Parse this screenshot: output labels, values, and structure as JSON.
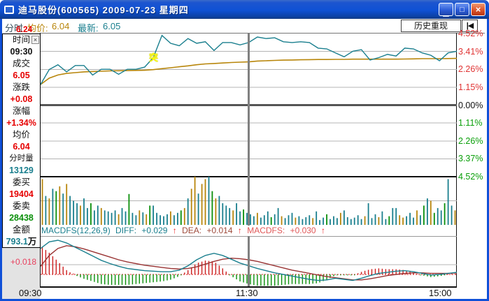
{
  "window": {
    "title": "迪马股份(600565) 2009-07-23 星期四",
    "minimize_label": "▁",
    "maximize_label": "□",
    "close_label": "×"
  },
  "header": {
    "mode": "分时",
    "avg_label": "均价:",
    "avg_value": "6.04",
    "last_label": "最新:",
    "last_value": "6.05",
    "replay_button": "历史重现",
    "jump_start_icon": "|◀"
  },
  "info_panel": {
    "close_icon": "×",
    "rows": [
      {
        "label": "时间",
        "value": "09:30",
        "color": "#111111"
      },
      {
        "label": "成交",
        "value": "6.05",
        "color": "#e60000"
      },
      {
        "label": "涨跌",
        "value": "+0.08",
        "color": "#e60000"
      },
      {
        "label": "涨幅",
        "value": "+1.34%",
        "color": "#e60000"
      },
      {
        "label": "均价",
        "value": "6.04",
        "color": "#e60000"
      },
      {
        "label": "分时量",
        "value": "13129",
        "color": "#1a7f8e"
      },
      {
        "label": "委买",
        "value": "19404",
        "color": "#e60000"
      },
      {
        "label": "委卖",
        "value": "28438",
        "color": "#0a8f0a"
      },
      {
        "label": "金额",
        "value": "793.1",
        "suffix": "万",
        "color": "#1a7f8e"
      }
    ]
  },
  "price_axis": {
    "top_price_label": "6.24",
    "macd_grid_label": "+0.018"
  },
  "right_axis": [
    {
      "text": "4.52%",
      "color": "#e03434"
    },
    {
      "text": "3.41%",
      "color": "#e03434"
    },
    {
      "text": "2.26%",
      "color": "#e03434"
    },
    {
      "text": "1.15%",
      "color": "#e03434"
    },
    {
      "text": "0.00%",
      "color": "#111111"
    },
    {
      "text": "1.11%",
      "color": "#0a9f0a"
    },
    {
      "text": "2.26%",
      "color": "#0a9f0a"
    },
    {
      "text": "3.37%",
      "color": "#0a9f0a"
    },
    {
      "text": "4.52%",
      "color": "#0a9f0a"
    }
  ],
  "time_axis": {
    "open": "09:30",
    "noon": "11:30",
    "close": "15:00"
  },
  "macd_header": {
    "formula": "MACDFS(12,26,9)",
    "diff_label": "DIFF:",
    "diff_value": "+0.029",
    "dea_label": "DEA:",
    "dea_value": "+0.014",
    "macd_label": "MACDFS:",
    "macd_value": "+0.030",
    "arrow": "↑"
  },
  "annotation": {
    "text": "突",
    "color": "#ffff00"
  },
  "chart_data": {
    "type": "line",
    "panes": [
      "price",
      "volume",
      "macd"
    ],
    "x": {
      "labels": [
        "09:30",
        "11:30",
        "15:00"
      ],
      "trading_minutes": 240
    },
    "prev_close": 5.97,
    "right_axis_labels": [
      "4.52%",
      "3.41%",
      "2.26%",
      "1.15%",
      "0.00%",
      "1.11%",
      "2.26%",
      "3.37%",
      "4.52%"
    ],
    "ylim_percent": [
      -4.52,
      4.52
    ],
    "price_pct": [
      1.3,
      2.25,
      2.55,
      2.1,
      2.5,
      2.5,
      1.9,
      2.26,
      2.26,
      1.95,
      2.26,
      2.26,
      2.4,
      3.0,
      4.4,
      3.9,
      3.75,
      4.2,
      3.9,
      4.0,
      3.45,
      3.95,
      3.95,
      3.8,
      3.95,
      4.3,
      4.2,
      4.25,
      4.0,
      3.95,
      4.0,
      3.95,
      3.6,
      3.55,
      3.3,
      3.05,
      3.4,
      3.5,
      2.85,
      3.0,
      3.2,
      3.1,
      3.6,
      3.55,
      3.3,
      3.15,
      2.8,
      3.3,
      3.4
    ],
    "avg_pct": [
      1.3,
      1.7,
      1.9,
      2.0,
      2.05,
      2.1,
      2.12,
      2.14,
      2.16,
      2.17,
      2.18,
      2.19,
      2.2,
      2.24,
      2.3,
      2.36,
      2.42,
      2.48,
      2.55,
      2.6,
      2.63,
      2.66,
      2.69,
      2.71,
      2.73,
      2.78,
      2.8,
      2.82,
      2.84,
      2.85,
      2.86,
      2.87,
      2.88,
      2.88,
      2.89,
      2.89,
      2.9,
      2.9,
      2.9,
      2.9,
      2.9,
      2.9,
      2.91,
      2.92,
      2.93,
      2.93,
      2.93,
      2.94,
      2.95
    ],
    "volume_pct": [
      95,
      60,
      55,
      75,
      70,
      80,
      65,
      85,
      60,
      50,
      45,
      40,
      55,
      35,
      45,
      30,
      40,
      35,
      30,
      28,
      25,
      30,
      22,
      35,
      28,
      64,
      25,
      20,
      30,
      26,
      22,
      40,
      40,
      25,
      20,
      18,
      22,
      28,
      20,
      25,
      30,
      35,
      55,
      75,
      100,
      65,
      85,
      95,
      100,
      70,
      55,
      60,
      45,
      40,
      35,
      30,
      45,
      28,
      32,
      25,
      22,
      18,
      25,
      15,
      20,
      28,
      16,
      22,
      35,
      18,
      14,
      20,
      25,
      15,
      18,
      12,
      16,
      20,
      14,
      28,
      10,
      15,
      22,
      12,
      18,
      14,
      25,
      30,
      16,
      12,
      15,
      20,
      12,
      18,
      45,
      14,
      22,
      16,
      28,
      12,
      18,
      35,
      35,
      20,
      15,
      18,
      25,
      15,
      30,
      20,
      40,
      55,
      50,
      25,
      35,
      30,
      45,
      95,
      40,
      30
    ],
    "volume_colors": "1010210100010020010000100200101200000100210110110210000100200010002001000100001000200010000001000100200110001020120020010",
    "macd": {
      "label": "MACDFS(12,26,9)",
      "diff": [
        0.048,
        0.06,
        0.063,
        0.058,
        0.05,
        0.042,
        0.034,
        0.026,
        0.02,
        0.015,
        0.011,
        0.009,
        0.007,
        0.006,
        0.005,
        0.005,
        0.008,
        0.016,
        0.027,
        0.035,
        0.039,
        0.035,
        0.028,
        0.021,
        0.016,
        0.011,
        0.007,
        0.003,
        0.0,
        -0.003,
        -0.006,
        -0.009,
        -0.011,
        -0.01,
        -0.007,
        -0.009,
        -0.011,
        -0.007,
        -0.002,
        0.002,
        0.004,
        0.006,
        0.007,
        0.005,
        0.002,
        -0.001,
        0.0,
        0.002,
        0.004
      ],
      "dea": [
        0.015,
        0.035,
        0.048,
        0.053,
        0.051,
        0.047,
        0.042,
        0.037,
        0.032,
        0.027,
        0.023,
        0.02,
        0.017,
        0.015,
        0.013,
        0.011,
        0.01,
        0.011,
        0.014,
        0.019,
        0.024,
        0.028,
        0.03,
        0.029,
        0.027,
        0.024,
        0.02,
        0.016,
        0.012,
        0.008,
        0.005,
        0.002,
        -0.001,
        -0.004,
        -0.006,
        -0.008,
        -0.01,
        -0.01,
        -0.008,
        -0.005,
        -0.002,
        0.0,
        0.002,
        0.003,
        0.003,
        0.002,
        0.002,
        0.002,
        0.003
      ],
      "hist_scale": 1.6,
      "grid_value": 0.018
    },
    "colors": {
      "price": "#1a7f8e",
      "avg": "#b8860b",
      "diff": "#1a7f8e",
      "dea": "#993333",
      "hist_up": "#cc2020",
      "hist_down": "#0a8f0a",
      "volume_palette": [
        "#1a7f8e",
        "#b8860b",
        "#0a8f0a"
      ],
      "grid": "#b4b4b4",
      "zero_line": "#555555"
    }
  }
}
